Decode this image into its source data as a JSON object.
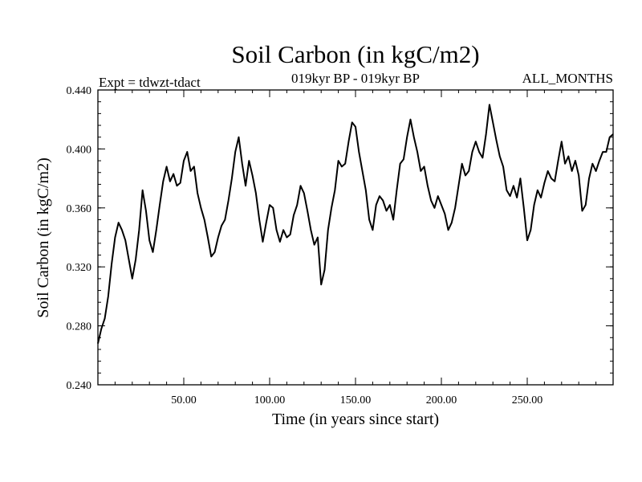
{
  "chart_data": {
    "type": "line",
    "title": "Soil Carbon (in kgC/m2)",
    "subtitle_left": "Expt = tdwzt-tdact",
    "subtitle_center": "019kyr BP - 019kyr BP",
    "subtitle_right": "ALL_MONTHS",
    "xlabel": "Time (in years since start)",
    "ylabel": "Soil Carbon (in kgC/m2)",
    "xlim": [
      0,
      300
    ],
    "ylim": [
      0.24,
      0.44
    ],
    "xticks": [
      50,
      100,
      150,
      200,
      250
    ],
    "xtick_labels": [
      "50.00",
      "100.00",
      "150.00",
      "200.00",
      "250.00"
    ],
    "yticks": [
      0.24,
      0.28,
      0.32,
      0.36,
      0.4,
      0.44
    ],
    "ytick_labels": [
      "0.240",
      "0.280",
      "0.320",
      "0.360",
      "0.400",
      "0.440"
    ],
    "grid": false,
    "line_color": "#000000",
    "series": [
      {
        "x": [
          0,
          2,
          4,
          6,
          8,
          10,
          12,
          14,
          16,
          18,
          20,
          22,
          24,
          26,
          28,
          30,
          32,
          34,
          36,
          38,
          40,
          42,
          44,
          46,
          48,
          50,
          52,
          54,
          56,
          58,
          60,
          62,
          64,
          66,
          68,
          70,
          72,
          74,
          76,
          78,
          80,
          82,
          84,
          86,
          88,
          90,
          92,
          94,
          96,
          98,
          100,
          102,
          104,
          106,
          108,
          110,
          112,
          114,
          116,
          118,
          120,
          122,
          124,
          126,
          128,
          130,
          132,
          134,
          136,
          138,
          140,
          142,
          144,
          146,
          148,
          150,
          152,
          154,
          156,
          158,
          160,
          162,
          164,
          166,
          168,
          170,
          172,
          174,
          176,
          178,
          180,
          182,
          184,
          186,
          188,
          190,
          192,
          194,
          196,
          198,
          200,
          202,
          204,
          206,
          208,
          210,
          212,
          214,
          216,
          218,
          220,
          222,
          224,
          226,
          228,
          230,
          232,
          234,
          236,
          238,
          240,
          242,
          244,
          246,
          248,
          250,
          252,
          254,
          256,
          258,
          260,
          262,
          264,
          266,
          268,
          270,
          272,
          274,
          276,
          278,
          280,
          282,
          284,
          286,
          288,
          290,
          292,
          294,
          296,
          298,
          300
        ],
        "values": [
          0.268,
          0.278,
          0.285,
          0.3,
          0.322,
          0.34,
          0.35,
          0.345,
          0.338,
          0.325,
          0.312,
          0.325,
          0.345,
          0.372,
          0.358,
          0.338,
          0.33,
          0.345,
          0.362,
          0.378,
          0.388,
          0.378,
          0.383,
          0.375,
          0.377,
          0.392,
          0.398,
          0.385,
          0.388,
          0.37,
          0.36,
          0.352,
          0.34,
          0.327,
          0.33,
          0.34,
          0.348,
          0.352,
          0.365,
          0.38,
          0.398,
          0.408,
          0.39,
          0.375,
          0.392,
          0.382,
          0.37,
          0.352,
          0.337,
          0.35,
          0.362,
          0.36,
          0.345,
          0.337,
          0.345,
          0.34,
          0.342,
          0.355,
          0.362,
          0.375,
          0.37,
          0.358,
          0.345,
          0.335,
          0.34,
          0.308,
          0.318,
          0.345,
          0.36,
          0.372,
          0.392,
          0.388,
          0.39,
          0.405,
          0.418,
          0.415,
          0.398,
          0.385,
          0.372,
          0.352,
          0.345,
          0.362,
          0.368,
          0.365,
          0.358,
          0.362,
          0.352,
          0.372,
          0.39,
          0.393,
          0.408,
          0.42,
          0.408,
          0.398,
          0.385,
          0.388,
          0.375,
          0.365,
          0.36,
          0.368,
          0.362,
          0.356,
          0.345,
          0.35,
          0.36,
          0.375,
          0.39,
          0.382,
          0.385,
          0.398,
          0.405,
          0.398,
          0.394,
          0.41,
          0.43,
          0.418,
          0.406,
          0.395,
          0.388,
          0.372,
          0.368,
          0.375,
          0.367,
          0.38,
          0.36,
          0.338,
          0.345,
          0.362,
          0.372,
          0.367,
          0.377,
          0.385,
          0.38,
          0.378,
          0.392,
          0.405,
          0.39,
          0.395,
          0.385,
          0.392,
          0.382,
          0.358,
          0.362,
          0.38,
          0.39,
          0.385,
          0.392,
          0.398,
          0.398,
          0.408,
          0.41
        ]
      }
    ]
  }
}
